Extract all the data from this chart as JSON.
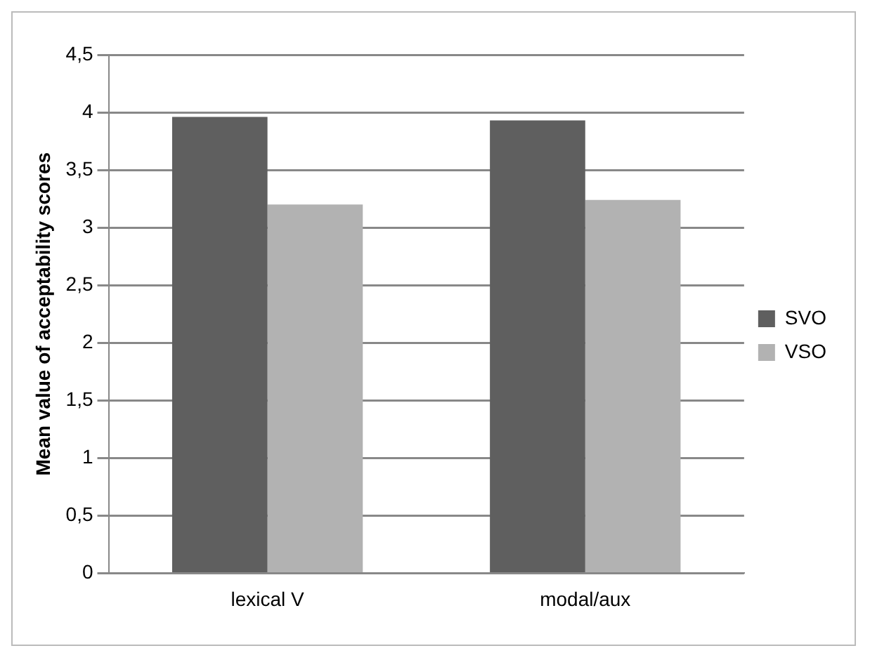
{
  "chart_data": {
    "type": "bar",
    "ylabel": "Mean value of acceptability scores",
    "categories": [
      "lexical V",
      "modal/aux"
    ],
    "series": [
      {
        "name": "SVO",
        "color": "#5f5f5f",
        "values": [
          3.96,
          3.93
        ]
      },
      {
        "name": "VSO",
        "color": "#b2b2b2",
        "values": [
          3.2,
          3.24
        ]
      }
    ],
    "ylim": [
      0,
      4.5
    ],
    "yticks": [
      0,
      {
        "value": 0.5,
        "label": "0,5"
      },
      1,
      {
        "value": 1.5,
        "label": "1,5"
      },
      2,
      {
        "value": 2.5,
        "label": "2,5"
      },
      3,
      {
        "value": 3.5,
        "label": "3,5"
      },
      4,
      {
        "value": 4.5,
        "label": "4,5"
      }
    ],
    "grid": "y",
    "legend": "right"
  }
}
